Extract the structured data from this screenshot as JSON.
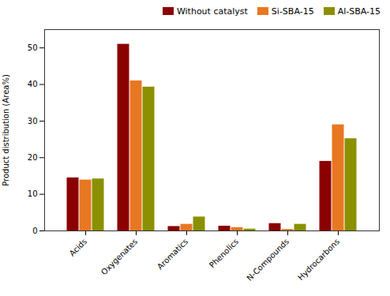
{
  "chart_data": {
    "type": "bar",
    "categories": [
      "Acids",
      "Oxygenates",
      "Aromatics",
      "Phenolics",
      "N-Compounds",
      "Hydrocarbons"
    ],
    "series": [
      {
        "name": "Without catalyst",
        "color": "#8B0000",
        "values": [
          14.5,
          51.0,
          1.2,
          1.3,
          2.0,
          19.0
        ]
      },
      {
        "name": "Si-SBA-15",
        "color": "#E87722",
        "values": [
          13.9,
          41.0,
          1.8,
          0.9,
          0.4,
          29.0
        ]
      },
      {
        "name": "Al-SBA-15",
        "color": "#8B9000",
        "values": [
          14.2,
          39.3,
          3.8,
          0.5,
          1.8,
          25.2
        ]
      }
    ],
    "ylabel": "Product distribution (Area%)",
    "ylim": [
      0,
      55
    ],
    "yticks": [
      0,
      10,
      20,
      30,
      40,
      50
    ],
    "grid": false,
    "legend": "upper right"
  }
}
